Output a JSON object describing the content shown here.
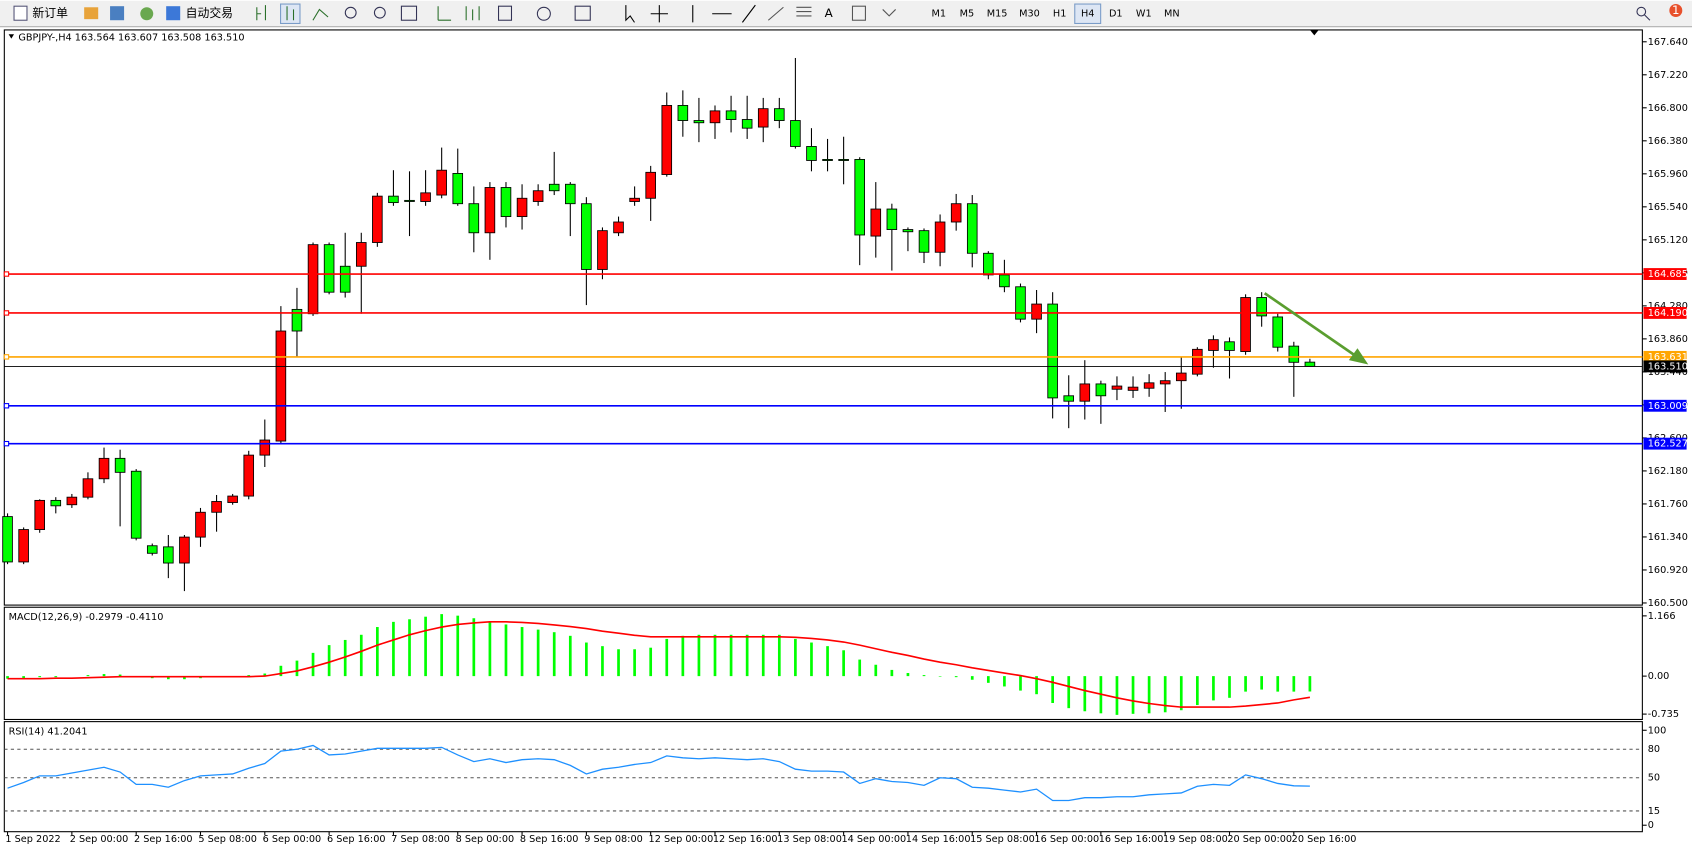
{
  "toolbar": {
    "new_order": "新订单",
    "auto_trading": "自动交易",
    "timeframes": [
      "M1",
      "M5",
      "M15",
      "M30",
      "H1",
      "H4",
      "D1",
      "W1",
      "MN"
    ],
    "selected_timeframe": 5,
    "notification_count": 1
  },
  "chart_data": [
    {
      "type": "candlestick",
      "title": "GBPJPY-,H4  163.564 163.607 163.508 163.510",
      "categories": [
        "1 Sep 2022",
        null,
        null,
        null,
        "2 Sep 00:00",
        null,
        null,
        null,
        "2 Sep 16:00",
        null,
        null,
        null,
        "5 Sep 08:00",
        null,
        null,
        null,
        "6 Sep 00:00",
        null,
        null,
        null,
        "6 Sep 16:00",
        null,
        null,
        null,
        "7 Sep 08:00",
        null,
        null,
        null,
        "8 Sep 00:00",
        null,
        null,
        null,
        "8 Sep 16:00",
        null,
        null,
        null,
        "9 Sep 08:00",
        null,
        null,
        null,
        "12 Sep 00:00",
        null,
        null,
        null,
        "12 Sep 16:00",
        null,
        null,
        null,
        "13 Sep 08:00",
        null,
        null,
        null,
        "14 Sep 00:00",
        null,
        null,
        null,
        "14 Sep 16:00",
        null,
        null,
        null,
        "15 Sep 08:00",
        null,
        null,
        null,
        "16 Sep 00:00",
        null,
        null,
        null,
        "16 Sep 16:00",
        null,
        null,
        null,
        "19 Sep 08:00",
        null,
        null,
        null,
        "20 Sep 00:00",
        null,
        null,
        null,
        "20 Sep 16:00",
        null
      ],
      "open": [
        161.599,
        161.022,
        161.434,
        161.805,
        161.75,
        161.846,
        162.08,
        162.34,
        162.176,
        161.228,
        161.214,
        161.008,
        161.338,
        161.654,
        161.778,
        161.86,
        162.381,
        162.56,
        164.235,
        164.18,
        165.059,
        164.784,
        164.784,
        165.086,
        165.676,
        165.622,
        165.608,
        165.69,
        165.965,
        165.58,
        165.21,
        165.786,
        165.416,
        165.608,
        165.827,
        165.827,
        165.58,
        164.743,
        165.21,
        165.608,
        165.649,
        165.951,
        166.83,
        166.638,
        166.61,
        166.761,
        166.651,
        166.555,
        166.789,
        166.638,
        166.308,
        166.143,
        166.143,
        166.143,
        165.168,
        165.512,
        165.251,
        165.237,
        164.962,
        165.347,
        165.58,
        164.949,
        164.674,
        164.523,
        164.111,
        164.303,
        163.136,
        163.067,
        163.287,
        163.219,
        163.205,
        163.232,
        163.287,
        163.328,
        163.411,
        163.713,
        163.823,
        163.699,
        164.386,
        164.139,
        163.768,
        163.564
      ],
      "high": [
        161.64,
        161.461,
        161.819,
        161.846,
        161.887,
        162.162,
        162.477,
        162.45,
        162.203,
        161.256,
        161.365,
        161.365,
        161.709,
        161.874,
        161.887,
        162.436,
        162.834,
        164.276,
        164.509,
        165.086,
        165.086,
        165.21,
        165.21,
        165.718,
        166.006,
        165.992,
        166.006,
        166.294,
        166.281,
        165.8,
        165.855,
        165.855,
        165.827,
        165.827,
        166.239,
        165.855,
        165.663,
        165.278,
        165.416,
        165.8,
        166.061,
        166.995,
        167.022,
        166.926,
        166.83,
        166.953,
        166.953,
        166.926,
        166.926,
        167.434,
        166.541,
        166.404,
        166.432,
        166.171,
        165.855,
        165.58,
        165.278,
        165.265,
        165.443,
        165.704,
        165.69,
        164.976,
        164.866,
        164.564,
        164.482,
        164.454,
        163.397,
        163.589,
        163.328,
        163.383,
        163.383,
        163.411,
        163.438,
        163.631,
        163.754,
        163.905,
        163.878,
        164.427,
        164.454,
        164.18,
        163.823,
        163.607
      ],
      "low": [
        160.994,
        160.994,
        161.393,
        161.64,
        161.709,
        161.819,
        162.025,
        161.475,
        161.297,
        161.104,
        160.816,
        160.651,
        161.214,
        161.407,
        161.75,
        161.819,
        162.23,
        162.532,
        163.631,
        164.152,
        164.427,
        164.386,
        164.18,
        165.031,
        165.553,
        165.168,
        165.553,
        165.649,
        165.553,
        164.962,
        164.866,
        165.278,
        165.251,
        165.553,
        165.69,
        165.168,
        164.29,
        164.619,
        165.168,
        165.553,
        165.361,
        165.924,
        166.432,
        166.363,
        166.404,
        166.487,
        166.404,
        166.363,
        166.541,
        166.281,
        165.992,
        165.992,
        165.827,
        164.798,
        164.894,
        164.729,
        164.976,
        164.825,
        164.784,
        165.237,
        164.77,
        164.619,
        164.454,
        164.07,
        163.933,
        162.848,
        162.724,
        162.834,
        162.779,
        163.081,
        163.109,
        163.123,
        162.93,
        162.971,
        163.383,
        163.493,
        163.356,
        163.658,
        164.015,
        163.699,
        163.123,
        163.508
      ],
      "close": [
        161.022,
        161.434,
        161.805,
        161.736,
        161.846,
        162.08,
        162.34,
        162.162,
        161.324,
        161.132,
        161.008,
        161.338,
        161.654,
        161.791,
        161.86,
        162.381,
        162.573,
        163.96,
        163.96,
        165.059,
        164.454,
        164.454,
        165.086,
        165.676,
        165.594,
        165.608,
        165.718,
        166.006,
        165.58,
        165.21,
        165.786,
        165.416,
        165.649,
        165.745,
        165.745,
        165.58,
        164.743,
        165.237,
        165.347,
        165.649,
        165.979,
        166.83,
        166.638,
        166.61,
        166.761,
        166.651,
        166.541,
        166.789,
        166.638,
        166.308,
        166.13,
        166.13,
        166.13,
        165.182,
        165.512,
        165.251,
        165.223,
        164.962,
        165.347,
        165.58,
        164.949,
        164.674,
        164.523,
        164.111,
        164.303,
        163.109,
        163.067,
        163.287,
        163.136,
        163.26,
        163.246,
        163.301,
        163.328,
        163.425,
        163.727,
        163.85,
        163.713,
        164.386,
        164.152,
        163.754,
        163.562,
        163.51
      ],
      "up_color": "#ff0000",
      "down_color": "#00ff00",
      "ylim": [
        160.473,
        167.777
      ],
      "yticks": [
        {
          "value": 167.64,
          "label": "167.640"
        },
        {
          "value": 167.22,
          "label": "167.220"
        },
        {
          "value": 166.8,
          "label": "166.800"
        },
        {
          "value": 166.38,
          "label": "166.380"
        },
        {
          "value": 165.96,
          "label": "165.960"
        },
        {
          "value": 165.54,
          "label": "165.540"
        },
        {
          "value": 165.12,
          "label": "165.120"
        },
        {
          "value": 164.7,
          "label": "164.700"
        },
        {
          "value": 164.28,
          "label": "164.280"
        },
        {
          "value": 163.86,
          "label": "163.860"
        },
        {
          "value": 163.44,
          "label": "163.440"
        },
        {
          "value": 163.02,
          "label": "163.020"
        },
        {
          "value": 162.6,
          "label": "162.600"
        },
        {
          "value": 162.18,
          "label": "162.180"
        },
        {
          "value": 161.76,
          "label": "161.760"
        },
        {
          "value": 161.34,
          "label": "161.340"
        },
        {
          "value": 160.92,
          "label": "160.920"
        },
        {
          "value": 160.5,
          "label": "160.500"
        }
      ],
      "levels": [
        {
          "value": 164.685,
          "label": "164.685",
          "color": "#ff0000"
        },
        {
          "value": 164.19,
          "label": "164.190",
          "color": "#ff0000"
        },
        {
          "value": 163.631,
          "label": "163.631",
          "color": "#ffa500"
        },
        {
          "value": 163.51,
          "label": "163.510",
          "color": "#000000"
        },
        {
          "value": 163.009,
          "label": "163.009",
          "color": "#0000ff"
        },
        {
          "value": 162.527,
          "label": "162.527",
          "color": "#0000ff"
        }
      ]
    },
    {
      "type": "macd",
      "title": "MACD(12,26,9) -0.2979 -0.4110",
      "series": [
        {
          "type": "bar",
          "color": "#00ff00",
          "values": [
            -0.05,
            -0.04,
            -0.02,
            -0.02,
            0,
            0.02,
            0.04,
            0.03,
            -0.01,
            -0.04,
            -0.06,
            -0.06,
            -0.04,
            -0.02,
            0,
            0.02,
            0.05,
            0.2,
            0.3,
            0.45,
            0.6,
            0.7,
            0.8,
            0.95,
            1.05,
            1.1,
            1.15,
            1.2,
            1.17,
            1.12,
            1.05,
            1,
            0.95,
            0.9,
            0.85,
            0.78,
            0.65,
            0.58,
            0.52,
            0.52,
            0.55,
            0.72,
            0.78,
            0.8,
            0.8,
            0.8,
            0.8,
            0.8,
            0.8,
            0.72,
            0.65,
            0.58,
            0.5,
            0.32,
            0.22,
            0.12,
            0.06,
            0.02,
            -0.01,
            -0.02,
            -0.07,
            -0.13,
            -0.2,
            -0.28,
            -0.35,
            -0.52,
            -0.62,
            -0.68,
            -0.72,
            -0.75,
            -0.73,
            -0.72,
            -0.7,
            -0.66,
            -0.56,
            -0.47,
            -0.42,
            -0.3,
            -0.26,
            -0.3,
            -0.3,
            -0.2979
          ]
        },
        {
          "type": "line",
          "color": "#ff0000",
          "values": [
            -0.05,
            -0.05,
            -0.05,
            -0.04,
            -0.04,
            -0.03,
            -0.02,
            -0.01,
            -0.01,
            -0.01,
            -0.01,
            -0.01,
            -0.01,
            -0.01,
            -0.01,
            -0.01,
            0,
            0.05,
            0.1,
            0.18,
            0.27,
            0.37,
            0.48,
            0.6,
            0.7,
            0.8,
            0.88,
            0.95,
            1,
            1.03,
            1.05,
            1.05,
            1.04,
            1.02,
            0.99,
            0.96,
            0.92,
            0.87,
            0.83,
            0.79,
            0.76,
            0.76,
            0.76,
            0.76,
            0.76,
            0.76,
            0.76,
            0.76,
            0.76,
            0.75,
            0.73,
            0.7,
            0.66,
            0.6,
            0.53,
            0.46,
            0.4,
            0.33,
            0.27,
            0.22,
            0.16,
            0.11,
            0.06,
            0.01,
            -0.05,
            -0.12,
            -0.2,
            -0.28,
            -0.35,
            -0.42,
            -0.48,
            -0.53,
            -0.57,
            -0.6,
            -0.6,
            -0.6,
            -0.6,
            -0.58,
            -0.55,
            -0.52,
            -0.46,
            -0.411
          ]
        }
      ],
      "ylim": [
        -0.839,
        1.312
      ],
      "yticks": [
        1.166,
        {
          "value": 0,
          "label": "0.00"
        },
        -0.735
      ]
    },
    {
      "type": "line",
      "title": "RSI(14) 41.2041",
      "series": [
        {
          "color": "#1e90ff",
          "values": [
            39,
            45,
            52,
            52,
            55,
            58,
            61,
            56,
            43,
            43,
            40,
            47,
            52,
            53,
            54,
            60,
            65,
            78,
            80,
            84,
            74,
            75,
            78,
            81,
            81,
            81,
            81,
            82,
            74,
            67,
            70,
            66,
            69,
            70,
            69,
            63,
            54,
            59,
            61,
            64,
            66,
            73,
            71,
            70,
            71,
            70,
            69,
            70,
            67,
            59,
            57,
            57,
            56,
            44,
            49,
            46,
            45,
            42,
            50,
            49,
            40,
            39,
            37,
            35,
            38,
            26,
            26,
            29,
            29,
            30,
            30,
            32,
            33,
            34,
            41,
            43,
            42,
            53,
            49,
            44,
            41.5,
            41.2041
          ]
        }
      ],
      "ylim": [
        -6.82,
        107.95
      ],
      "yticks": [
        100,
        0
      ],
      "levels": [
        80,
        50,
        15
      ]
    }
  ]
}
